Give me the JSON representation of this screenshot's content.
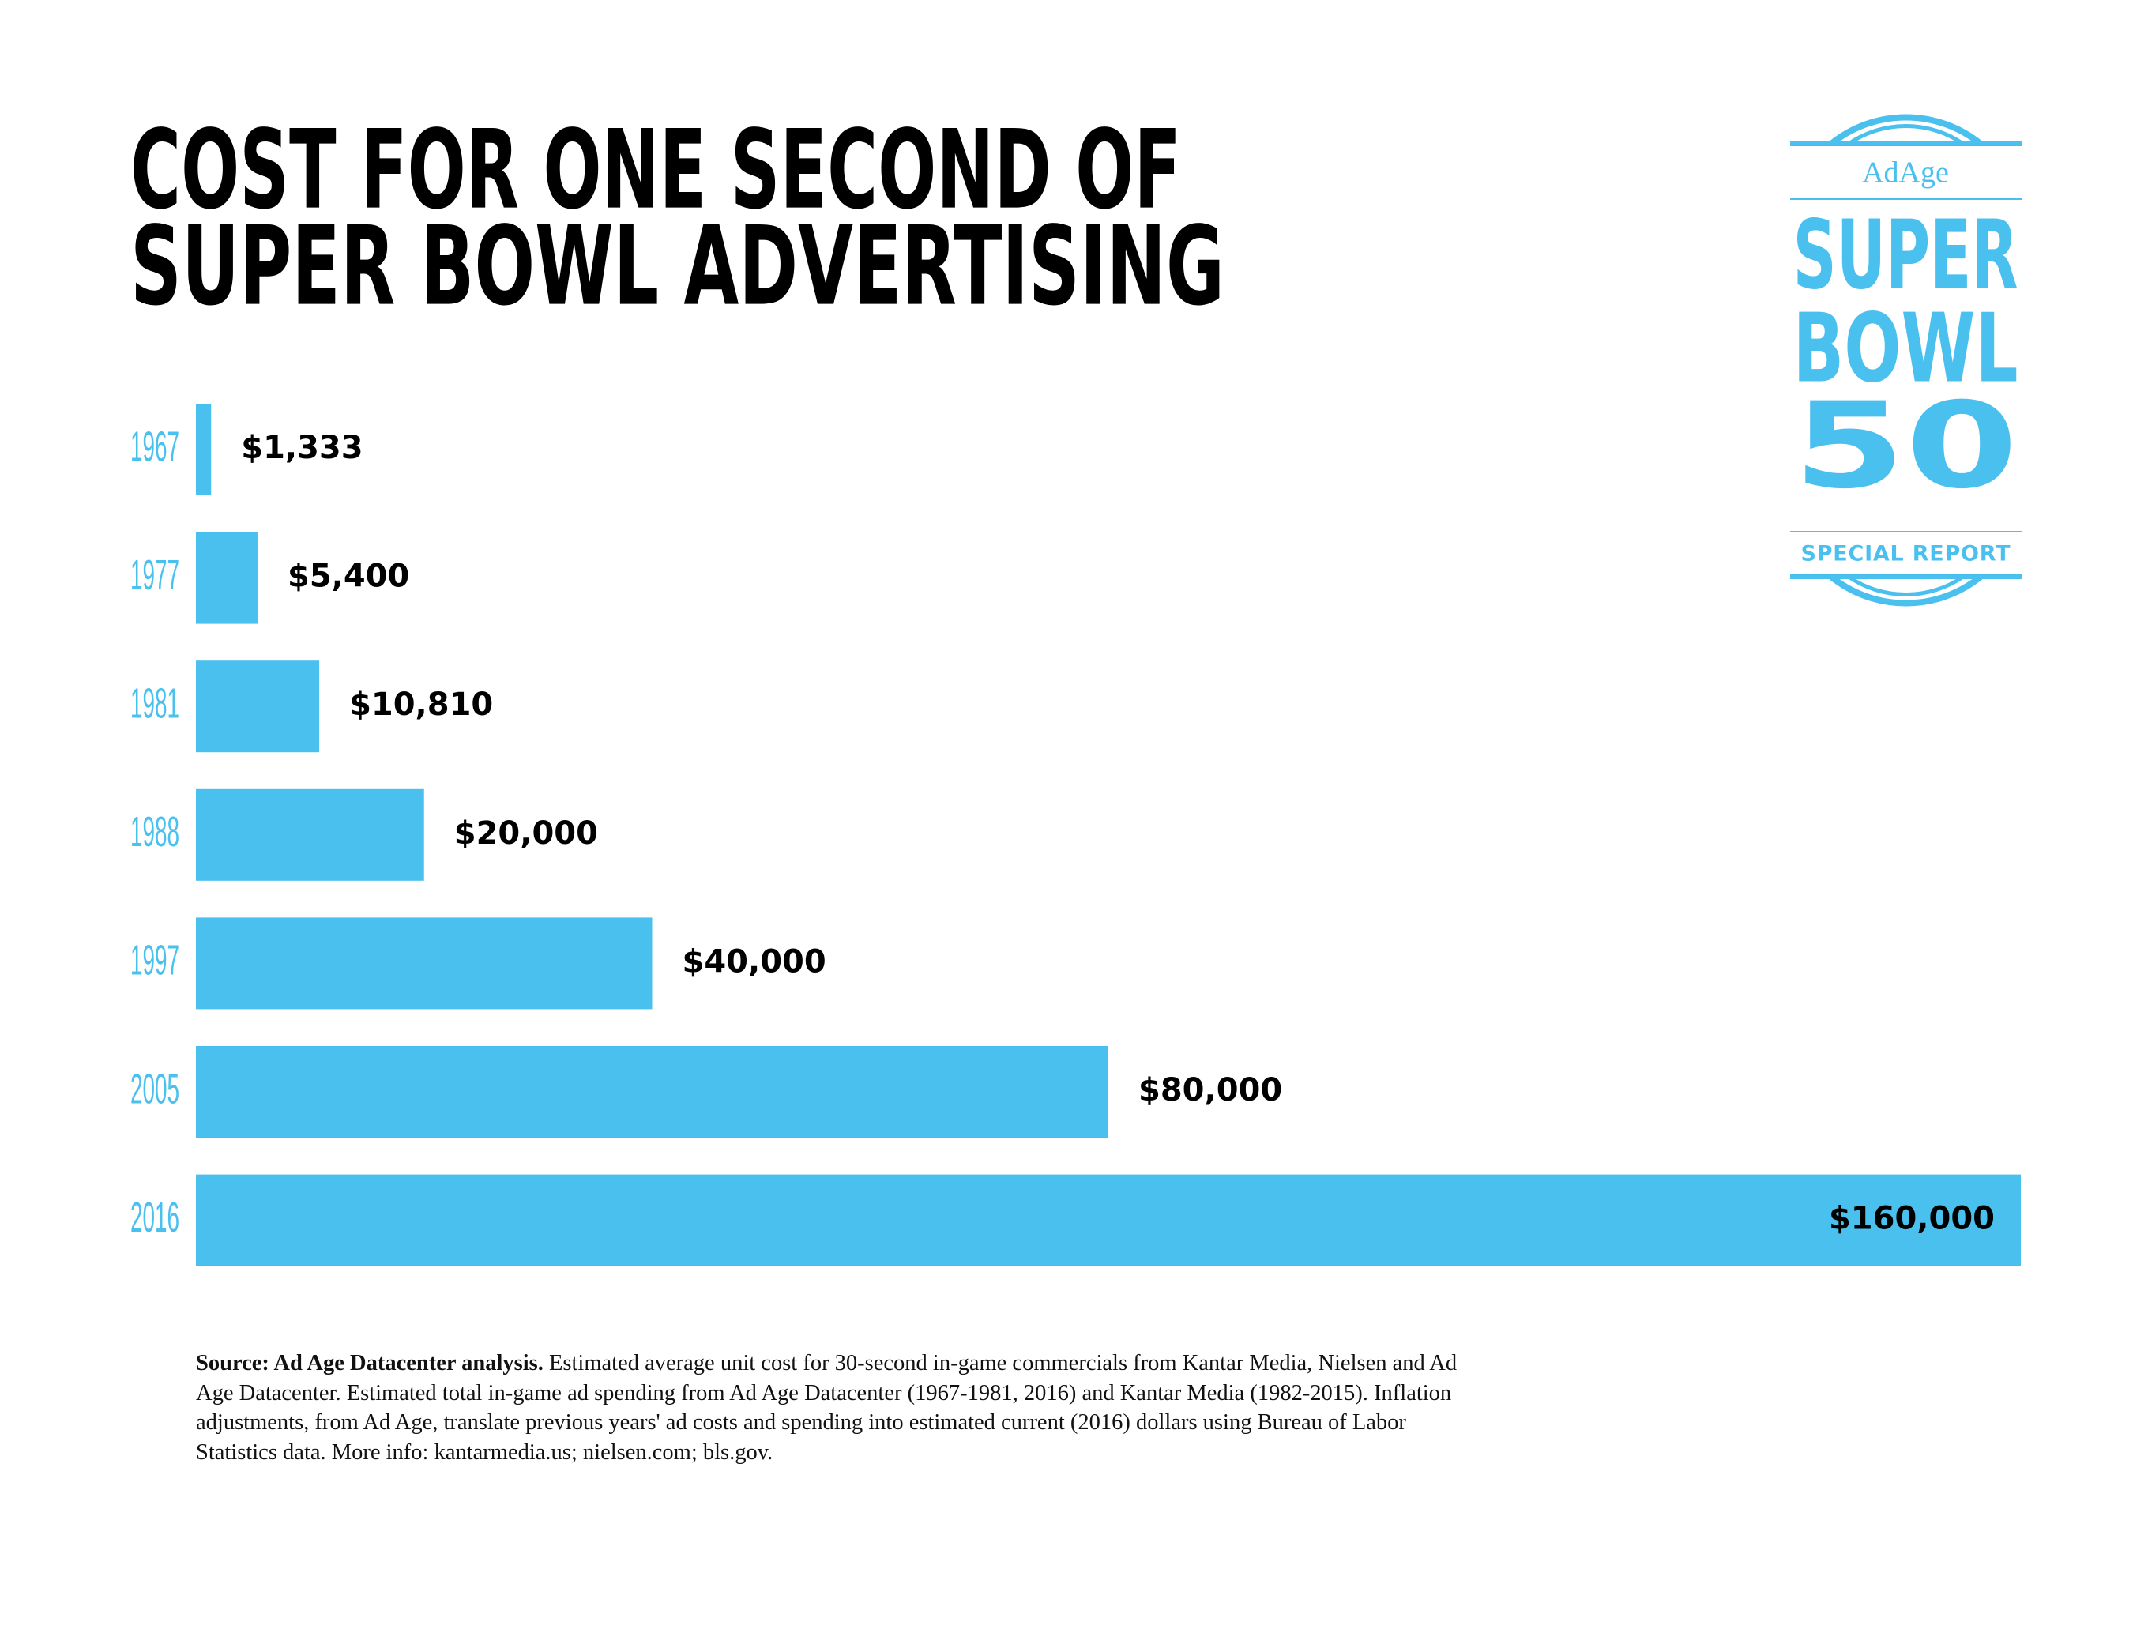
{
  "chart_data": {
    "type": "bar",
    "orientation": "horizontal",
    "title": [
      "COST FOR ONE SECOND OF",
      "SUPER BOWL ADVERTISING"
    ],
    "categories": [
      "1967",
      "1977",
      "1981",
      "1988",
      "1997",
      "2005",
      "2016"
    ],
    "values": [
      1333,
      5400,
      10810,
      20000,
      40000,
      80000,
      160000
    ],
    "value_labels": [
      "$1,333",
      "$5,400",
      "$10,810",
      "$20,000",
      "$40,000",
      "$80,000",
      "$160,000"
    ],
    "color": "#4ac0ef"
  },
  "logo": {
    "brand": "AdAge",
    "line1": "SUPER",
    "line2": "BOWL",
    "number": "50",
    "tag": "SPECIAL REPORT"
  },
  "source": {
    "lead": "Source: Ad Age Datacenter analysis.",
    "text": "Estimated average unit cost for 30-second in-game commercials from Kantar Media, Nielsen and Ad Age Datacenter. Estimated total in-game ad spending from Ad Age Datacenter (1967-1981, 2016) and Kantar Media (1982-2015). Inflation adjustments, from Ad Age, translate previous years' ad costs and spending into estimated current (2016) dollars using Bureau of Labor Statistics data. More info: kantarmedia.us; nielsen.com; bls.gov."
  }
}
